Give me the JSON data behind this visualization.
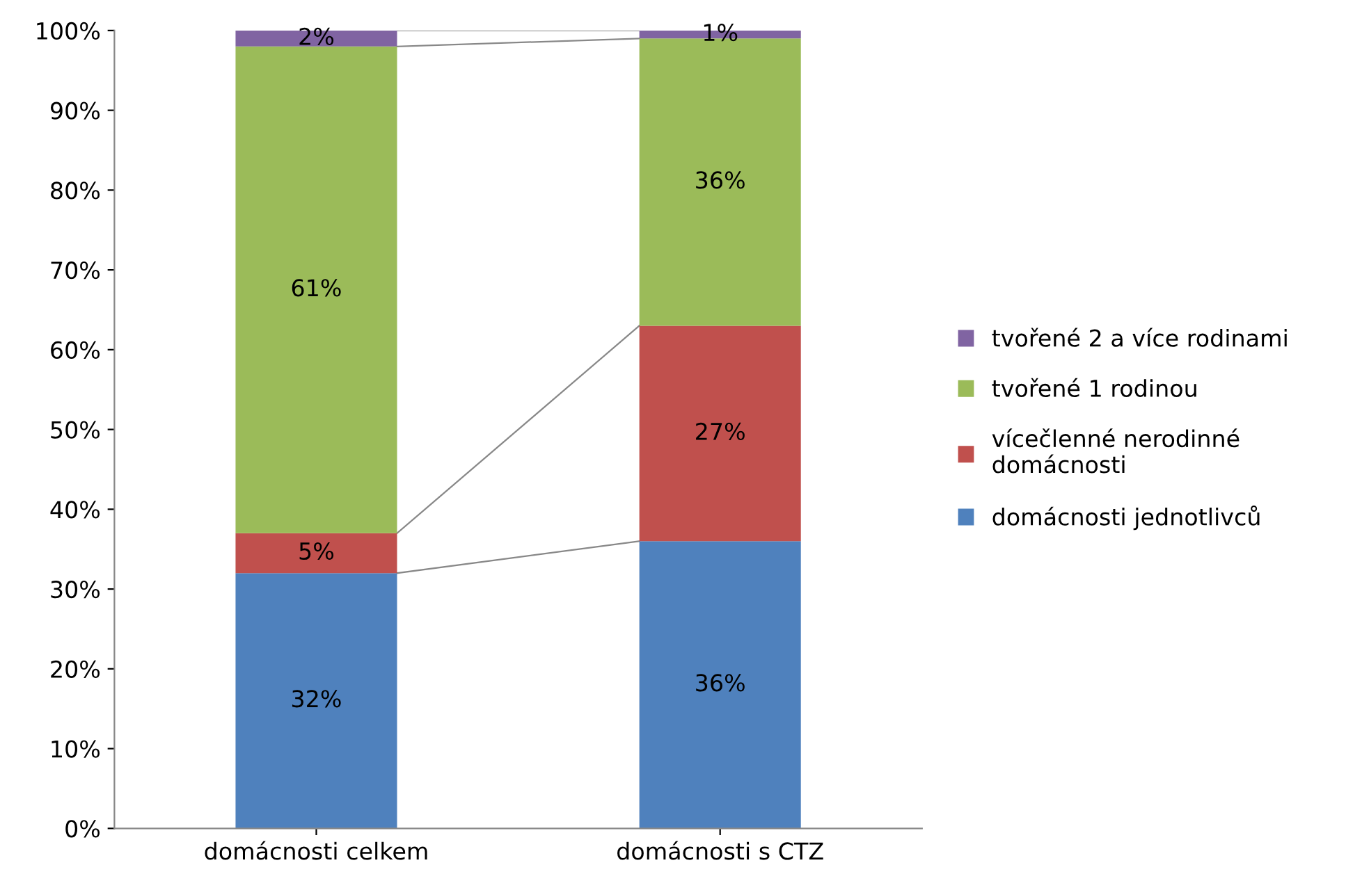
{
  "chart_data": {
    "type": "bar",
    "stacked": true,
    "categories": [
      "domácnosti celkem",
      "domácnosti s CTZ"
    ],
    "series": [
      {
        "name": "domácnosti jednotlivců",
        "color": "#4f81bd",
        "values": [
          32,
          36
        ],
        "value_labels": [
          "32%",
          "36%"
        ]
      },
      {
        "name": "vícečlenné nerodinné\ndomácnosti",
        "color": "#c0504d",
        "values": [
          5,
          27
        ],
        "value_labels": [
          "5%",
          "27%"
        ]
      },
      {
        "name": "tvořené 1 rodinou",
        "color": "#9bbb59",
        "values": [
          61,
          36
        ],
        "value_labels": [
          "61%",
          "36%"
        ]
      },
      {
        "name": "tvořené 2 a více rodinami",
        "color": "#8064a2",
        "values": [
          2,
          1
        ],
        "value_labels": [
          "2%",
          "1%"
        ]
      }
    ],
    "ylim": [
      0,
      100
    ],
    "yticks": [
      {
        "value": 0,
        "label": "0%"
      },
      {
        "value": 10,
        "label": "10%"
      },
      {
        "value": 20,
        "label": "20%"
      },
      {
        "value": 30,
        "label": "30%"
      },
      {
        "value": 40,
        "label": "40%"
      },
      {
        "value": 50,
        "label": "50%"
      },
      {
        "value": 60,
        "label": "60%"
      },
      {
        "value": 70,
        "label": "70%"
      },
      {
        "value": 80,
        "label": "80%"
      },
      {
        "value": 90,
        "label": "90%"
      },
      {
        "value": 100,
        "label": "100%"
      }
    ],
    "grid": false,
    "legend": "right"
  }
}
